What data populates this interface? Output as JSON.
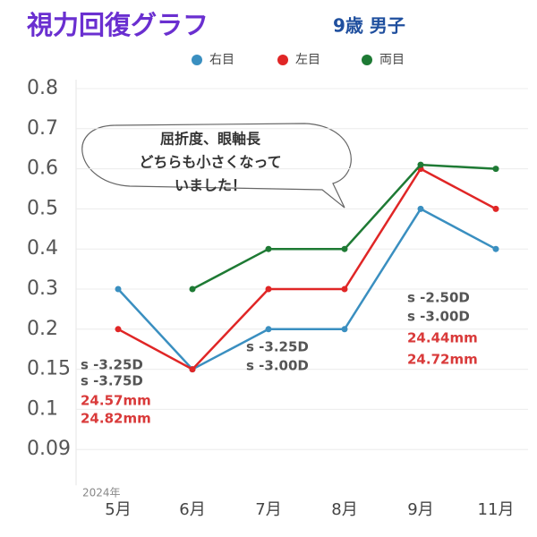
{
  "chart_data": {
    "type": "line",
    "title": "視力回復グラフ",
    "subtitle": "9歳 男子",
    "x_note": "2024年",
    "categories": [
      "5月",
      "6月",
      "7月",
      "8月",
      "9月",
      "11月"
    ],
    "series": [
      {
        "name": "右目",
        "color": "#3a8fc0",
        "values": [
          0.3,
          0.15,
          0.2,
          0.2,
          0.5,
          0.4
        ]
      },
      {
        "name": "左目",
        "color": "#e02626",
        "values": [
          0.2,
          0.15,
          0.3,
          0.3,
          0.6,
          0.5
        ]
      },
      {
        "name": "両目",
        "color": "#1e7a34",
        "values": [
          null,
          0.3,
          0.4,
          0.4,
          0.61,
          0.6
        ]
      }
    ],
    "ylim": [
      0.09,
      0.8
    ],
    "yticks": [
      0.8,
      0.7,
      0.6,
      0.5,
      0.4,
      0.3,
      0.2,
      0.15,
      0.1,
      0.09
    ],
    "grid": true,
    "bubble": [
      "屈折度、眼軸長",
      "どちらも小さくなって",
      "いました！"
    ],
    "annotations": [
      {
        "lines": [
          {
            "text": "s -3.25D",
            "color": "#555555"
          },
          {
            "text": "s -3.75D",
            "color": "#555555"
          },
          {
            "text": "24.57mm",
            "color": "#d93a3a"
          },
          {
            "text": "24.82mm",
            "color": "#d93a3a"
          }
        ]
      },
      {
        "lines": [
          {
            "text": "s -3.25D",
            "color": "#555555"
          },
          {
            "text": "s -3.00D",
            "color": "#555555"
          }
        ]
      },
      {
        "lines": [
          {
            "text": "s -2.50D",
            "color": "#555555"
          },
          {
            "text": "s -3.00D",
            "color": "#555555"
          },
          {
            "text": "24.44mm",
            "color": "#d93a3a"
          },
          {
            "text": "24.72mm",
            "color": "#d93a3a"
          }
        ]
      }
    ]
  }
}
